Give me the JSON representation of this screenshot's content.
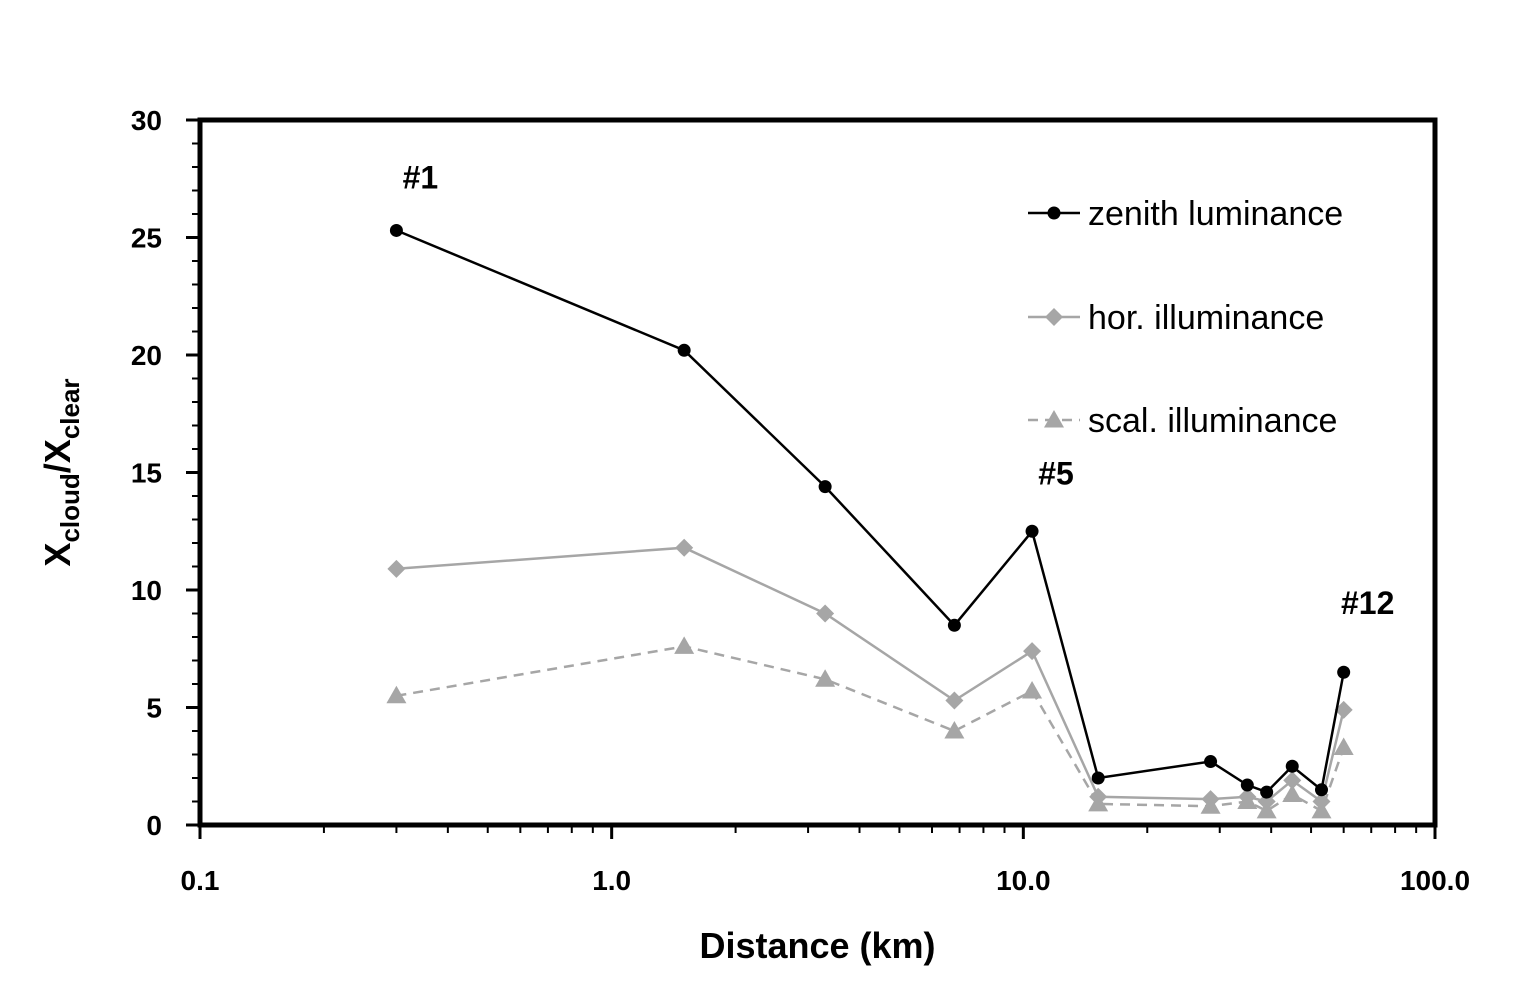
{
  "chart_data": {
    "type": "line",
    "xlabel": "Distance (km)",
    "ylabel": {
      "base1": "X",
      "sub1": "cloud",
      "sep": "/",
      "base2": "X",
      "sub2": "clear"
    },
    "xscale": "log",
    "xlim": [
      0.1,
      100
    ],
    "ylim": [
      0,
      30
    ],
    "x_ticks": [
      "0.1",
      "1.0",
      "10.0",
      "100.0"
    ],
    "y_ticks": [
      "0",
      "5",
      "10",
      "15",
      "20",
      "25",
      "30"
    ],
    "grid": false,
    "legend": "top-right",
    "x": [
      0.3,
      1.5,
      3.3,
      6.8,
      10.5,
      15.2,
      28.5,
      35,
      39,
      45,
      53,
      60
    ],
    "series": [
      {
        "name": "zenith luminance",
        "marker": "circle",
        "color": "#000000",
        "dash": false,
        "values": [
          25.3,
          20.2,
          14.4,
          8.5,
          12.5,
          2.0,
          2.7,
          1.7,
          1.4,
          2.5,
          1.5,
          6.5
        ]
      },
      {
        "name": "hor. illuminance",
        "marker": "diamond",
        "color": "#a6a6a6",
        "dash": false,
        "values": [
          10.9,
          11.8,
          9.0,
          5.3,
          7.4,
          1.2,
          1.1,
          1.2,
          1.0,
          1.9,
          1.0,
          4.9
        ]
      },
      {
        "name": "scal. illuminance",
        "marker": "triangle",
        "color": "#a6a6a6",
        "dash": true,
        "values": [
          5.5,
          7.6,
          6.2,
          4.0,
          5.7,
          0.9,
          0.8,
          1.0,
          0.6,
          1.3,
          0.6,
          3.3
        ]
      }
    ],
    "annotations": [
      {
        "text": "#1",
        "x": 0.3,
        "y": 27.6
      },
      {
        "text": "#5",
        "x": 10.5,
        "y": 15.0
      },
      {
        "text": "#12",
        "x": 60,
        "y": 9.5
      }
    ]
  }
}
